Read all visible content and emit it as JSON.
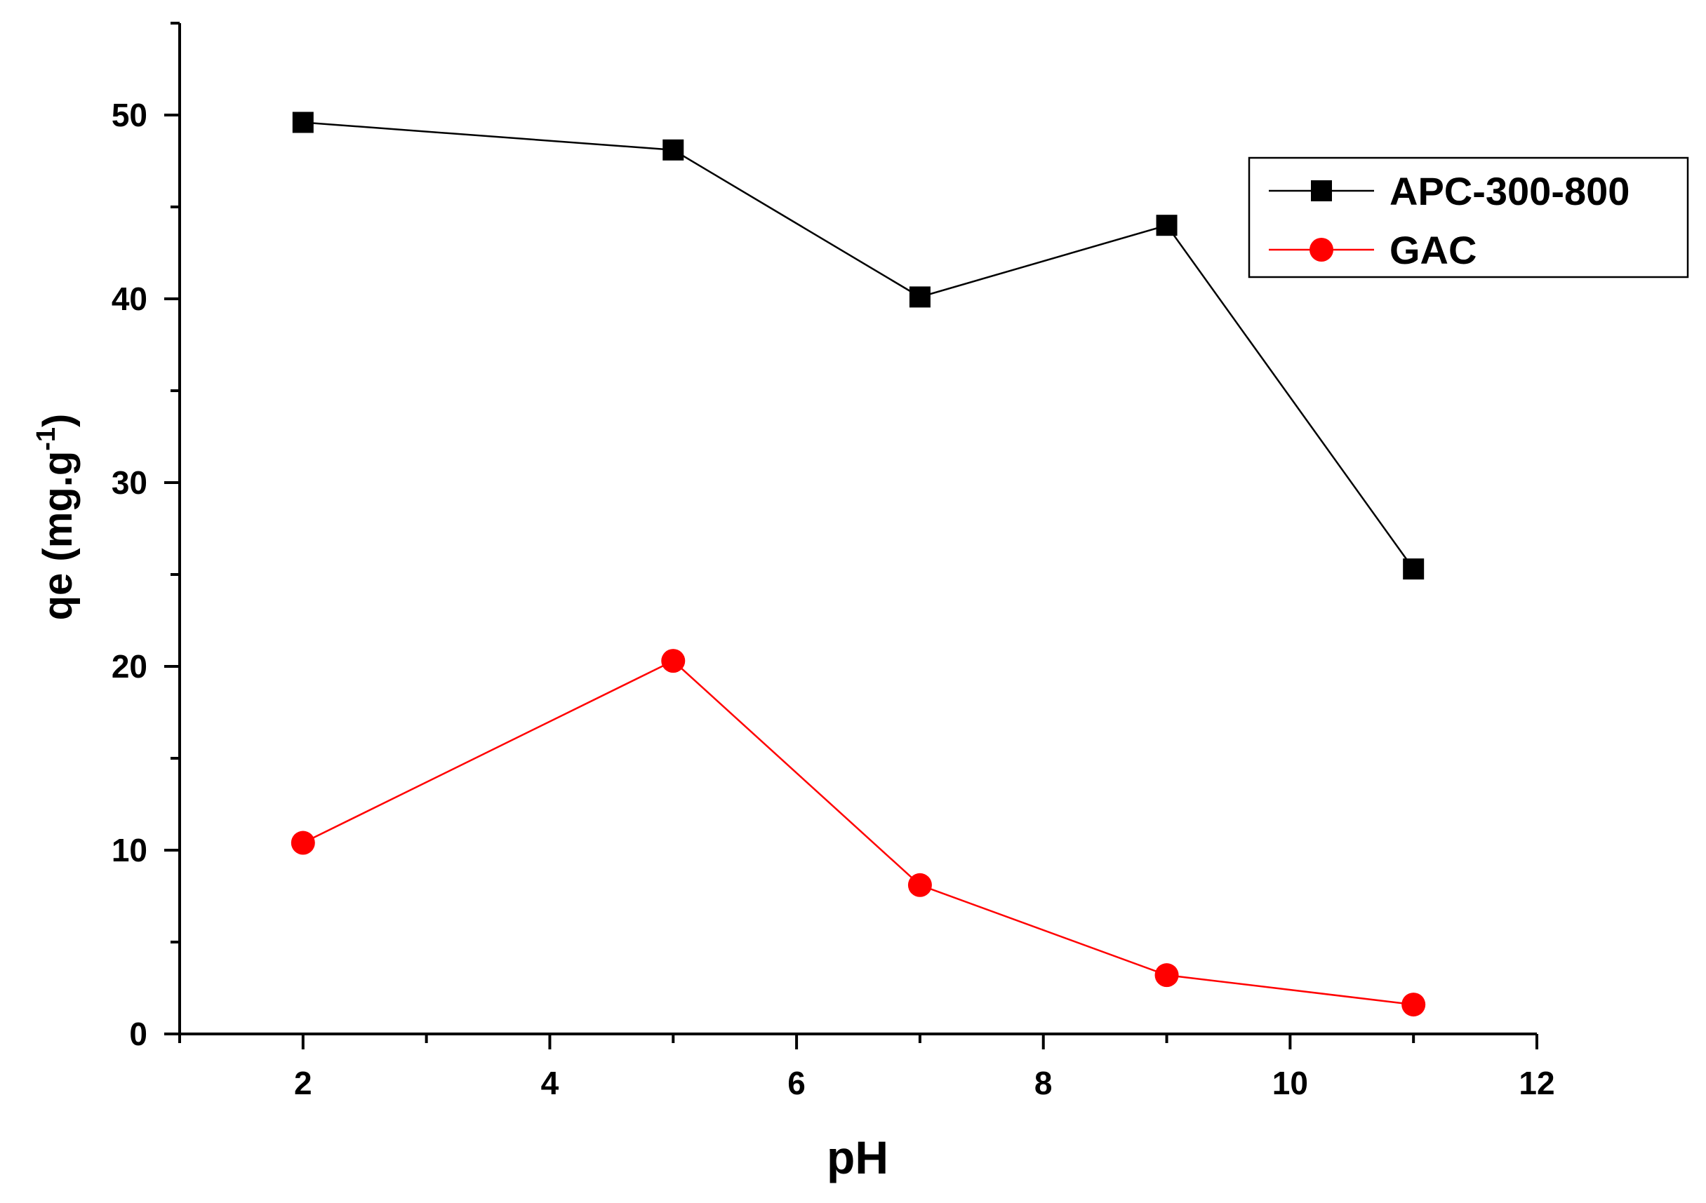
{
  "chart_data": {
    "type": "line",
    "title": "",
    "xlabel": "pH",
    "ylabel": {
      "main": "qe (mg.g",
      "superscript": "-1",
      "close": ")"
    },
    "xlim": [
      1,
      12
    ],
    "ylim": [
      0,
      55
    ],
    "x_ticks": [
      2,
      4,
      6,
      8,
      10,
      12
    ],
    "y_ticks": [
      0,
      10,
      20,
      30,
      40,
      50
    ],
    "x_tick_labels": [
      "2",
      "4",
      "6",
      "8",
      "10",
      "12"
    ],
    "y_tick_labels": [
      "0",
      "10",
      "20",
      "30",
      "40",
      "50"
    ],
    "grid": false,
    "legend_position": "top-right",
    "series": [
      {
        "name": "APC-300-800",
        "color": "#000000",
        "marker": "square",
        "x": [
          2,
          5,
          7,
          9,
          11
        ],
        "y": [
          49.6,
          48.1,
          40.1,
          44.0,
          25.3
        ]
      },
      {
        "name": "GAC",
        "color": "#ff0000",
        "marker": "circle",
        "x": [
          2,
          5,
          7,
          9,
          11
        ],
        "y": [
          10.4,
          20.3,
          8.1,
          3.2,
          1.6
        ]
      }
    ]
  }
}
